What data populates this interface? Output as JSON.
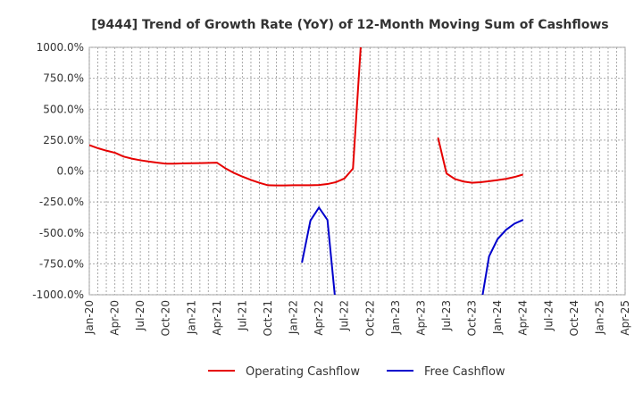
{
  "chart_data": {
    "type": "line",
    "title": "[9444]  Trend of Growth Rate (YoY) of 12-Month Moving Sum of Cashflows",
    "xlabel": "",
    "ylabel": "",
    "ylim": [
      -1000,
      1000
    ],
    "y_ticks": [
      1000,
      750,
      500,
      250,
      0,
      -250,
      -500,
      -750,
      -1000
    ],
    "y_tick_labels": [
      "1000.0%",
      "750.0%",
      "500.0%",
      "250.0%",
      "0.0%",
      "-250.0%",
      "-500.0%",
      "-750.0%",
      "-1000.0%"
    ],
    "x_tick_labels": [
      "Jan-20",
      "Apr-20",
      "Jul-20",
      "Oct-20",
      "Jan-21",
      "Apr-21",
      "Jul-21",
      "Oct-21",
      "Jan-22",
      "Apr-22",
      "Jul-22",
      "Oct-22",
      "Jan-23",
      "Apr-23",
      "Jul-23",
      "Oct-23",
      "Jan-24",
      "Apr-24",
      "Jul-24",
      "Oct-24",
      "Jan-25",
      "Apr-25"
    ],
    "grid": true,
    "legend_position": "bottom-center",
    "series": [
      {
        "name": "Operating Cashflow",
        "color": "#e60000",
        "points": [
          {
            "x": "2020-01",
            "y": 210
          },
          {
            "x": "2020-02",
            "y": 185
          },
          {
            "x": "2020-03",
            "y": 165
          },
          {
            "x": "2020-04",
            "y": 148
          },
          {
            "x": "2020-05",
            "y": 118
          },
          {
            "x": "2020-06",
            "y": 100
          },
          {
            "x": "2020-07",
            "y": 87
          },
          {
            "x": "2020-08",
            "y": 77
          },
          {
            "x": "2020-09",
            "y": 68
          },
          {
            "x": "2020-10",
            "y": 60
          },
          {
            "x": "2020-11",
            "y": 60
          },
          {
            "x": "2020-12",
            "y": 62
          },
          {
            "x": "2021-01",
            "y": 63
          },
          {
            "x": "2021-02",
            "y": 64
          },
          {
            "x": "2021-03",
            "y": 66
          },
          {
            "x": "2021-04",
            "y": 68
          },
          {
            "x": "2021-05",
            "y": 22
          },
          {
            "x": "2021-06",
            "y": -15
          },
          {
            "x": "2021-07",
            "y": -45
          },
          {
            "x": "2021-08",
            "y": -72
          },
          {
            "x": "2021-09",
            "y": -95
          },
          {
            "x": "2021-10",
            "y": -115
          },
          {
            "x": "2021-11",
            "y": -116
          },
          {
            "x": "2021-12",
            "y": -116
          },
          {
            "x": "2022-01",
            "y": -115
          },
          {
            "x": "2022-02",
            "y": -115
          },
          {
            "x": "2022-03",
            "y": -115
          },
          {
            "x": "2022-04",
            "y": -113
          },
          {
            "x": "2022-05",
            "y": -105
          },
          {
            "x": "2022-06",
            "y": -90
          },
          {
            "x": "2022-07",
            "y": -60
          },
          {
            "x": "2022-08",
            "y": 20
          },
          {
            "x": "2022-09",
            "y": 1100
          },
          {
            "x": "2023-06",
            "y": 270
          },
          {
            "x": "2023-07",
            "y": -20
          },
          {
            "x": "2023-08",
            "y": -65
          },
          {
            "x": "2023-09",
            "y": -85
          },
          {
            "x": "2023-10",
            "y": -95
          },
          {
            "x": "2023-11",
            "y": -90
          },
          {
            "x": "2023-12",
            "y": -82
          },
          {
            "x": "2024-01",
            "y": -73
          },
          {
            "x": "2024-02",
            "y": -63
          },
          {
            "x": "2024-03",
            "y": -48
          },
          {
            "x": "2024-04",
            "y": -28
          }
        ]
      },
      {
        "name": "Free Cashflow",
        "color": "#0000cc",
        "points": [
          {
            "x": "2022-02",
            "y": -740
          },
          {
            "x": "2022-03",
            "y": -400
          },
          {
            "x": "2022-04",
            "y": -295
          },
          {
            "x": "2022-05",
            "y": -395
          },
          {
            "x": "2022-06",
            "y": -1100
          },
          {
            "x": "2023-11",
            "y": -1100
          },
          {
            "x": "2023-12",
            "y": -690
          },
          {
            "x": "2024-01",
            "y": -550
          },
          {
            "x": "2024-02",
            "y": -475
          },
          {
            "x": "2024-03",
            "y": -425
          },
          {
            "x": "2024-04",
            "y": -395
          }
        ],
        "segments": [
          [
            0,
            4
          ],
          [
            5,
            10
          ]
        ]
      }
    ]
  }
}
